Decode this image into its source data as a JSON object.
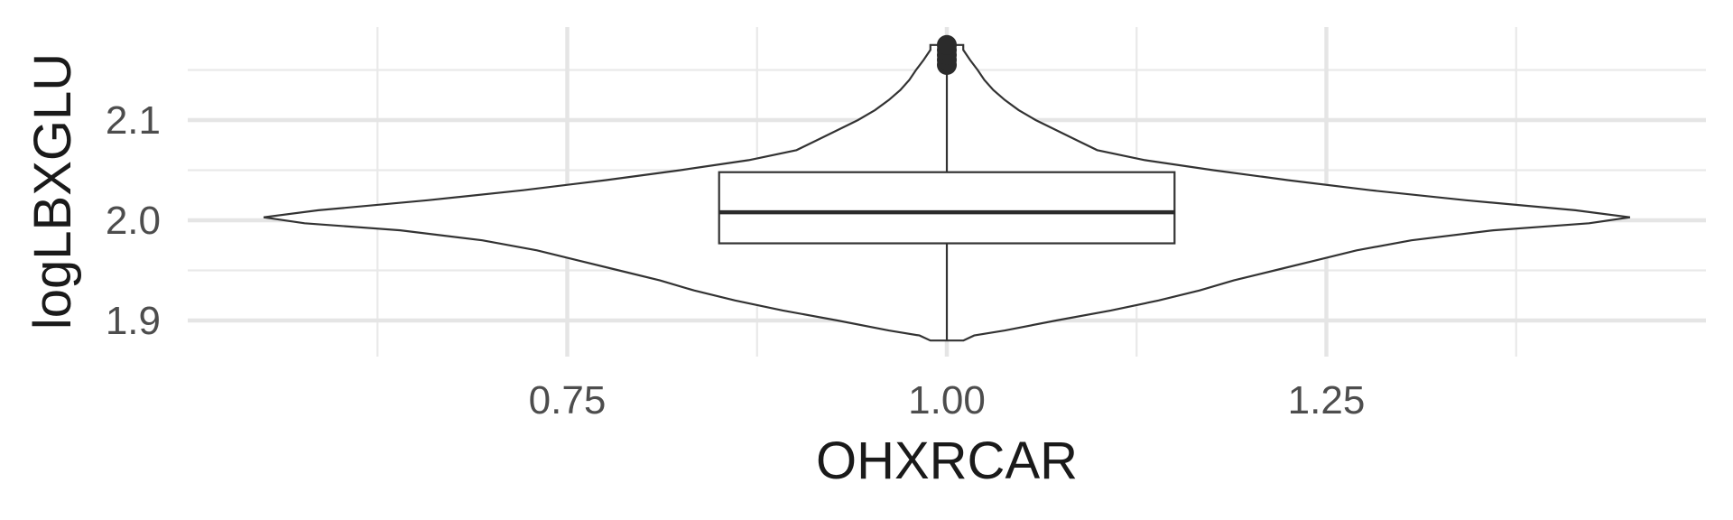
{
  "chart_data": {
    "type": "violin",
    "xlabel": "OHXRCAR",
    "ylabel": "logLBXGLU",
    "x_ticks": [
      "0.75",
      "1.00",
      "1.25"
    ],
    "y_ticks": [
      "1.9",
      "2.0",
      "2.1"
    ],
    "xlim": [
      0.5,
      1.5
    ],
    "ylim": [
      1.88,
      2.175
    ],
    "grid": true,
    "violin": {
      "x": 1.0,
      "half_width_data": 0.45,
      "y_min": 1.88,
      "y_max": 2.175,
      "density": [
        [
          1.88,
          0.024
        ],
        [
          1.885,
          0.04
        ],
        [
          1.89,
          0.085
        ],
        [
          1.9,
          0.16
        ],
        [
          1.91,
          0.24
        ],
        [
          1.92,
          0.31
        ],
        [
          1.93,
          0.37
        ],
        [
          1.94,
          0.42
        ],
        [
          1.95,
          0.48
        ],
        [
          1.96,
          0.54
        ],
        [
          1.97,
          0.6
        ],
        [
          1.98,
          0.68
        ],
        [
          1.99,
          0.8
        ],
        [
          1.997,
          0.94
        ],
        [
          2.003,
          1.0
        ],
        [
          2.01,
          0.92
        ],
        [
          2.02,
          0.76
        ],
        [
          2.03,
          0.62
        ],
        [
          2.04,
          0.5
        ],
        [
          2.05,
          0.39
        ],
        [
          2.06,
          0.29
        ],
        [
          2.07,
          0.22
        ],
        [
          2.08,
          0.19
        ],
        [
          2.09,
          0.16
        ],
        [
          2.1,
          0.13
        ],
        [
          2.11,
          0.105
        ],
        [
          2.12,
          0.085
        ],
        [
          2.13,
          0.068
        ],
        [
          2.14,
          0.055
        ],
        [
          2.15,
          0.045
        ],
        [
          2.16,
          0.034
        ],
        [
          2.17,
          0.024
        ],
        [
          2.175,
          0.024
        ]
      ]
    },
    "boxplot": {
      "x": 1.0,
      "half_width_data": 0.15,
      "q1": 1.977,
      "median": 2.008,
      "q3": 2.048,
      "whisker_low": 1.88,
      "whisker_high": 2.15,
      "outliers": [
        2.155,
        2.16,
        2.165,
        2.17,
        2.175
      ]
    }
  }
}
